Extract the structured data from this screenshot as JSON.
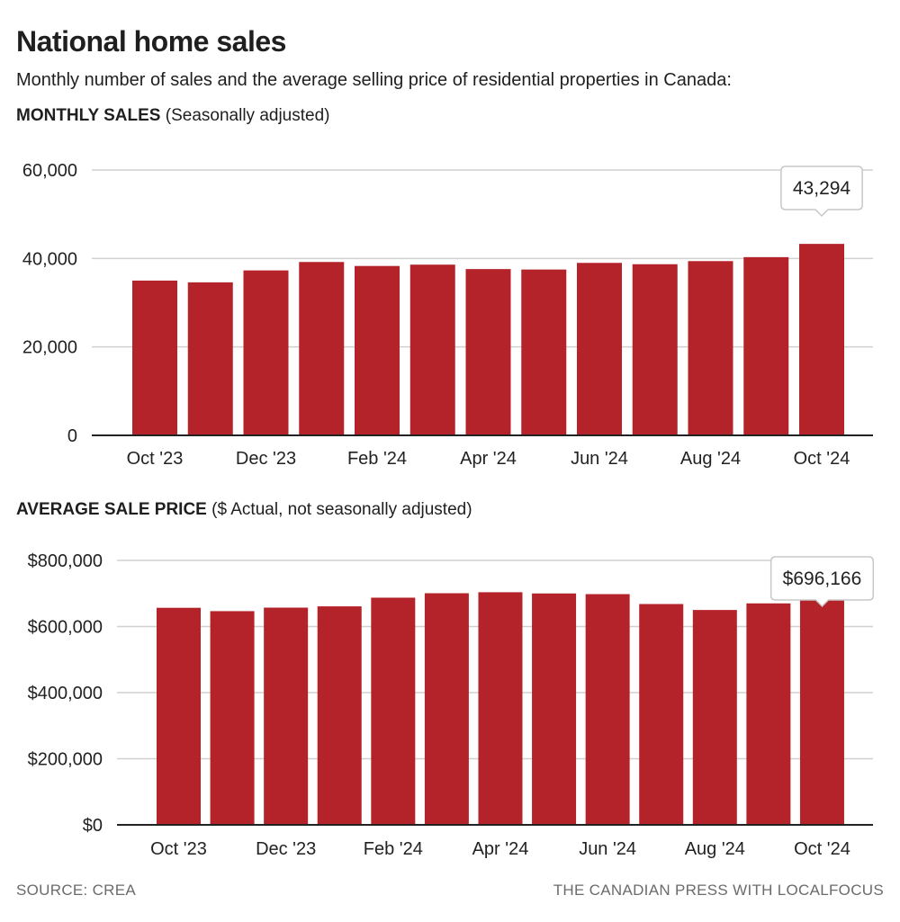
{
  "title": "National home sales",
  "subtitle": "Monthly number of sales and the average selling price of residential properties in Canada:",
  "colors": {
    "bar": "#b5232a",
    "grid": "#d0d0d0",
    "axis": "#222222",
    "footer": "#6b6b6b"
  },
  "chart_data": [
    {
      "type": "bar",
      "heading_bold": "MONTHLY SALES",
      "heading_rest": " (Seasonally adjusted)",
      "categories": [
        "Oct '23",
        "Nov '23",
        "Dec '23",
        "Jan '24",
        "Feb '24",
        "Mar '24",
        "Apr '24",
        "May '24",
        "Jun '24",
        "Jul '24",
        "Aug '24",
        "Sep '24",
        "Oct '24"
      ],
      "tick_labels": [
        "Oct '23",
        "Dec '23",
        "Feb '24",
        "Apr '24",
        "Jun '24",
        "Aug '24",
        "Oct '24"
      ],
      "values": [
        35000,
        34600,
        37300,
        39200,
        38300,
        38600,
        37600,
        37500,
        39000,
        38700,
        39400,
        40300,
        43294
      ],
      "ylim": [
        0,
        60000
      ],
      "yticks": [
        0,
        20000,
        40000,
        60000
      ],
      "ytick_labels": [
        "0",
        "20,000",
        "40,000",
        "60,000"
      ],
      "grid": true,
      "callout": {
        "label": "43,294"
      }
    },
    {
      "type": "bar",
      "heading_bold": "AVERAGE SALE PRICE",
      "heading_rest": " ($ Actual, not seasonally adjusted)",
      "categories": [
        "Oct '23",
        "Nov '23",
        "Dec '23",
        "Jan '24",
        "Feb '24",
        "Mar '24",
        "Apr '24",
        "May '24",
        "Jun '24",
        "Jul '24",
        "Aug '24",
        "Sep '24",
        "Oct '24"
      ],
      "tick_labels": [
        "Oct '23",
        "Dec '23",
        "Feb '24",
        "Apr '24",
        "Jun '24",
        "Aug '24",
        "Oct '24"
      ],
      "values": [
        656600,
        646500,
        657100,
        661000,
        687200,
        700700,
        703700,
        700000,
        698000,
        668000,
        650000,
        670000,
        696166
      ],
      "ylim": [
        0,
        800000
      ],
      "yticks": [
        0,
        200000,
        400000,
        600000,
        800000
      ],
      "ytick_labels": [
        "$0",
        "$200,000",
        "$400,000",
        "$600,000",
        "$800,000"
      ],
      "grid": true,
      "callout": {
        "label": "$696,166"
      }
    }
  ],
  "footer": {
    "source": "SOURCE:  CREA",
    "credit": "THE CANADIAN PRESS WITH LOCALFOCUS"
  }
}
